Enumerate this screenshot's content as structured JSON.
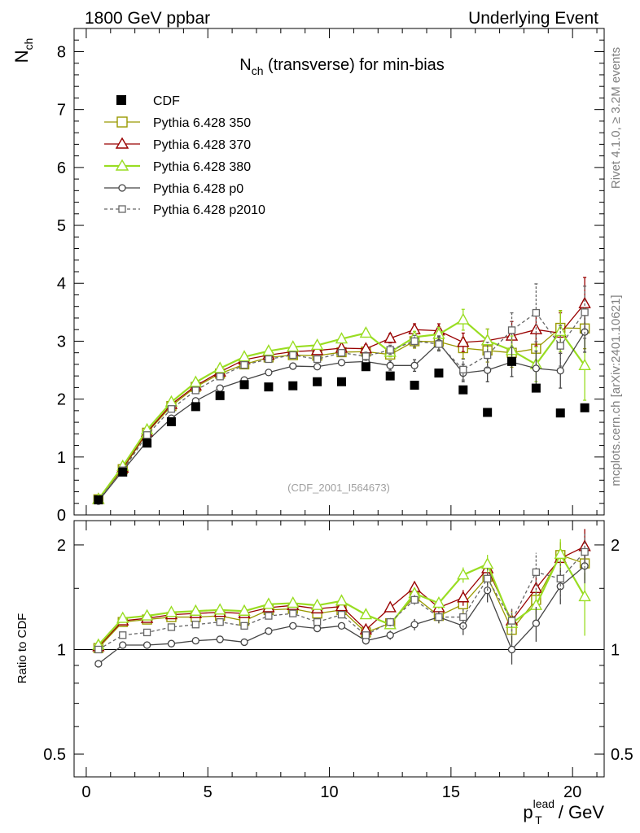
{
  "header": {
    "left": "1800 GeV ppbar",
    "right": "Underlying Event"
  },
  "side_labels": {
    "rivet": "Rivet 4.1.0, ≥ 3.2M events",
    "mcplots": "mcplots.cern.ch [arXiv:2401.10621]"
  },
  "chart_data": [
    {
      "panel": "main",
      "type": "line",
      "title_main": "N",
      "title_sub": "ch",
      "title_rest": " (transverse) for min-bias",
      "watermark": "(CDF_2001_I564673)",
      "ylabel_main": "N",
      "ylabel_sub": "ch",
      "ylim": [
        0,
        8.4
      ],
      "yticks": [
        0,
        1,
        2,
        3,
        4,
        5,
        6,
        7,
        8
      ],
      "xlim": [
        -0.5,
        21.3
      ],
      "x": [
        0.5,
        1.5,
        2.5,
        3.5,
        4.5,
        5.5,
        6.5,
        7.5,
        8.5,
        9.5,
        10.5,
        11.5,
        12.5,
        13.5,
        14.5,
        15.5,
        16.5,
        17.5,
        18.5,
        19.5,
        20.5
      ],
      "series": [
        {
          "name": "CDF",
          "style": "data",
          "color": "#000000",
          "values": [
            0.26,
            0.74,
            1.24,
            1.61,
            1.87,
            2.06,
            2.25,
            2.21,
            2.23,
            2.3,
            2.3,
            2.56,
            2.4,
            2.24,
            2.45,
            2.16,
            1.77,
            2.65,
            2.19,
            1.76,
            1.85
          ]
        },
        {
          "name": "Pythia 6.428 350",
          "style": "square",
          "color": "#999900",
          "values": [
            0.27,
            0.79,
            1.42,
            1.88,
            2.21,
            2.44,
            2.6,
            2.72,
            2.76,
            2.75,
            2.81,
            2.82,
            2.77,
            3.0,
            2.99,
            2.88,
            2.84,
            2.8,
            2.87,
            3.23,
            3.22
          ],
          "errors": [
            0,
            0,
            0,
            0,
            0,
            0,
            0,
            0,
            0,
            0,
            0.05,
            0.07,
            0.08,
            0.12,
            0.15,
            0.18,
            0.2,
            0.25,
            0.28,
            0.3,
            0.35
          ]
        },
        {
          "name": "Pythia 6.428 370",
          "style": "triangle",
          "color": "#990000",
          "values": [
            0.27,
            0.81,
            1.43,
            1.91,
            2.23,
            2.47,
            2.68,
            2.76,
            2.82,
            2.84,
            2.88,
            2.87,
            3.05,
            3.2,
            3.18,
            2.98,
            3.01,
            3.09,
            3.2,
            3.14,
            3.65
          ],
          "errors": [
            0,
            0,
            0,
            0,
            0,
            0,
            0,
            0,
            0,
            0,
            0.05,
            0.07,
            0.08,
            0.1,
            0.12,
            0.16,
            0.2,
            0.25,
            0.28,
            0.35,
            0.45
          ]
        },
        {
          "name": "Pythia 6.428 380",
          "style": "triangle",
          "color": "#99dd22",
          "values": [
            0.27,
            0.84,
            1.47,
            1.95,
            2.29,
            2.53,
            2.73,
            2.83,
            2.9,
            2.93,
            3.04,
            3.14,
            2.81,
            3.07,
            3.12,
            3.37,
            3.01,
            2.84,
            2.6,
            3.17,
            2.58
          ],
          "errors": [
            0,
            0,
            0,
            0,
            0,
            0,
            0,
            0,
            0,
            0,
            0.05,
            0.07,
            0.08,
            0.1,
            0.12,
            0.18,
            0.2,
            0.25,
            0.3,
            0.35,
            0.6
          ]
        },
        {
          "name": "Pythia 6.428 p0",
          "style": "circle",
          "color": "#444444",
          "values": [
            0.24,
            0.76,
            1.27,
            1.67,
            1.97,
            2.19,
            2.33,
            2.46,
            2.57,
            2.56,
            2.63,
            2.65,
            2.58,
            2.58,
            2.97,
            2.45,
            2.5,
            2.64,
            2.53,
            2.49,
            3.16
          ],
          "errors": [
            0,
            0,
            0,
            0,
            0,
            0,
            0,
            0,
            0,
            0,
            0.05,
            0.07,
            0.08,
            0.1,
            0.12,
            0.15,
            0.2,
            0.25,
            0.3,
            0.3,
            0.35
          ]
        },
        {
          "name": "Pythia 6.428 p2010",
          "style": "square-dashed",
          "color": "#666666",
          "values": [
            0.26,
            0.77,
            1.38,
            1.83,
            2.15,
            2.39,
            2.59,
            2.69,
            2.76,
            2.69,
            2.8,
            2.74,
            2.85,
            3.0,
            2.95,
            2.51,
            2.76,
            3.19,
            3.49,
            2.92,
            3.5
          ],
          "errors": [
            0,
            0,
            0,
            0,
            0,
            0,
            0,
            0,
            0,
            0,
            0.05,
            0.07,
            0.08,
            0.1,
            0.12,
            0.18,
            0.22,
            0.3,
            0.5,
            0.35,
            0.45
          ]
        }
      ]
    },
    {
      "panel": "ratio",
      "type": "line",
      "ylabel": "Ratio to CDF",
      "ylim": [
        0.43,
        2.35
      ],
      "log_y": true,
      "yticks": [
        0.5,
        1,
        2
      ],
      "ytick_labels": [
        "0.5",
        "1",
        "2"
      ],
      "xlim": [
        -0.5,
        21.3
      ],
      "xticks": [
        0,
        5,
        10,
        15,
        20
      ],
      "xtick_labels": [
        "0",
        "5",
        "10",
        "15",
        "20"
      ],
      "xlabel_main": "p",
      "xlabel_sub": "T",
      "xlabel_sup": "lead",
      "xlabel_rest": " / GeV",
      "x": [
        0.5,
        1.5,
        2.5,
        3.5,
        4.5,
        5.5,
        6.5,
        7.5,
        8.5,
        9.5,
        10.5,
        11.5,
        12.5,
        13.5,
        14.5,
        15.5,
        16.5,
        17.5,
        18.5,
        19.5,
        20.5
      ],
      "series": [
        {
          "name": "Pythia 6.428 350",
          "values": [
            1.01,
            1.2,
            1.22,
            1.24,
            1.24,
            1.25,
            1.21,
            1.3,
            1.31,
            1.27,
            1.3,
            1.12,
            1.19,
            1.42,
            1.25,
            1.35,
            1.62,
            1.14,
            1.39,
            1.87,
            1.77
          ]
        },
        {
          "name": "Pythia 6.428 370",
          "values": [
            1.02,
            1.21,
            1.23,
            1.26,
            1.27,
            1.28,
            1.27,
            1.32,
            1.34,
            1.31,
            1.33,
            1.14,
            1.32,
            1.51,
            1.32,
            1.41,
            1.71,
            1.21,
            1.5,
            1.83,
            1.98
          ]
        },
        {
          "name": "Pythia 6.428 380",
          "values": [
            1.03,
            1.23,
            1.25,
            1.28,
            1.29,
            1.3,
            1.29,
            1.35,
            1.36,
            1.34,
            1.38,
            1.26,
            1.18,
            1.45,
            1.36,
            1.64,
            1.76,
            1.19,
            1.34,
            1.88,
            1.42
          ]
        },
        {
          "name": "Pythia 6.428 p0",
          "values": [
            0.91,
            1.03,
            1.03,
            1.04,
            1.06,
            1.07,
            1.05,
            1.13,
            1.17,
            1.15,
            1.17,
            1.06,
            1.1,
            1.18,
            1.24,
            1.17,
            1.48,
            1.0,
            1.19,
            1.52,
            1.74
          ]
        },
        {
          "name": "Pythia 6.428 p2010",
          "values": [
            1.0,
            1.1,
            1.12,
            1.16,
            1.18,
            1.2,
            1.17,
            1.25,
            1.27,
            1.2,
            1.26,
            1.1,
            1.2,
            1.39,
            1.24,
            1.24,
            1.6,
            1.21,
            1.67,
            1.6,
            1.91
          ]
        }
      ]
    }
  ],
  "legend": [
    {
      "label": "CDF"
    },
    {
      "label": "Pythia 6.428 350"
    },
    {
      "label": "Pythia 6.428 370"
    },
    {
      "label": "Pythia 6.428 380"
    },
    {
      "label": "Pythia 6.428 p0"
    },
    {
      "label": "Pythia 6.428 p2010"
    }
  ]
}
